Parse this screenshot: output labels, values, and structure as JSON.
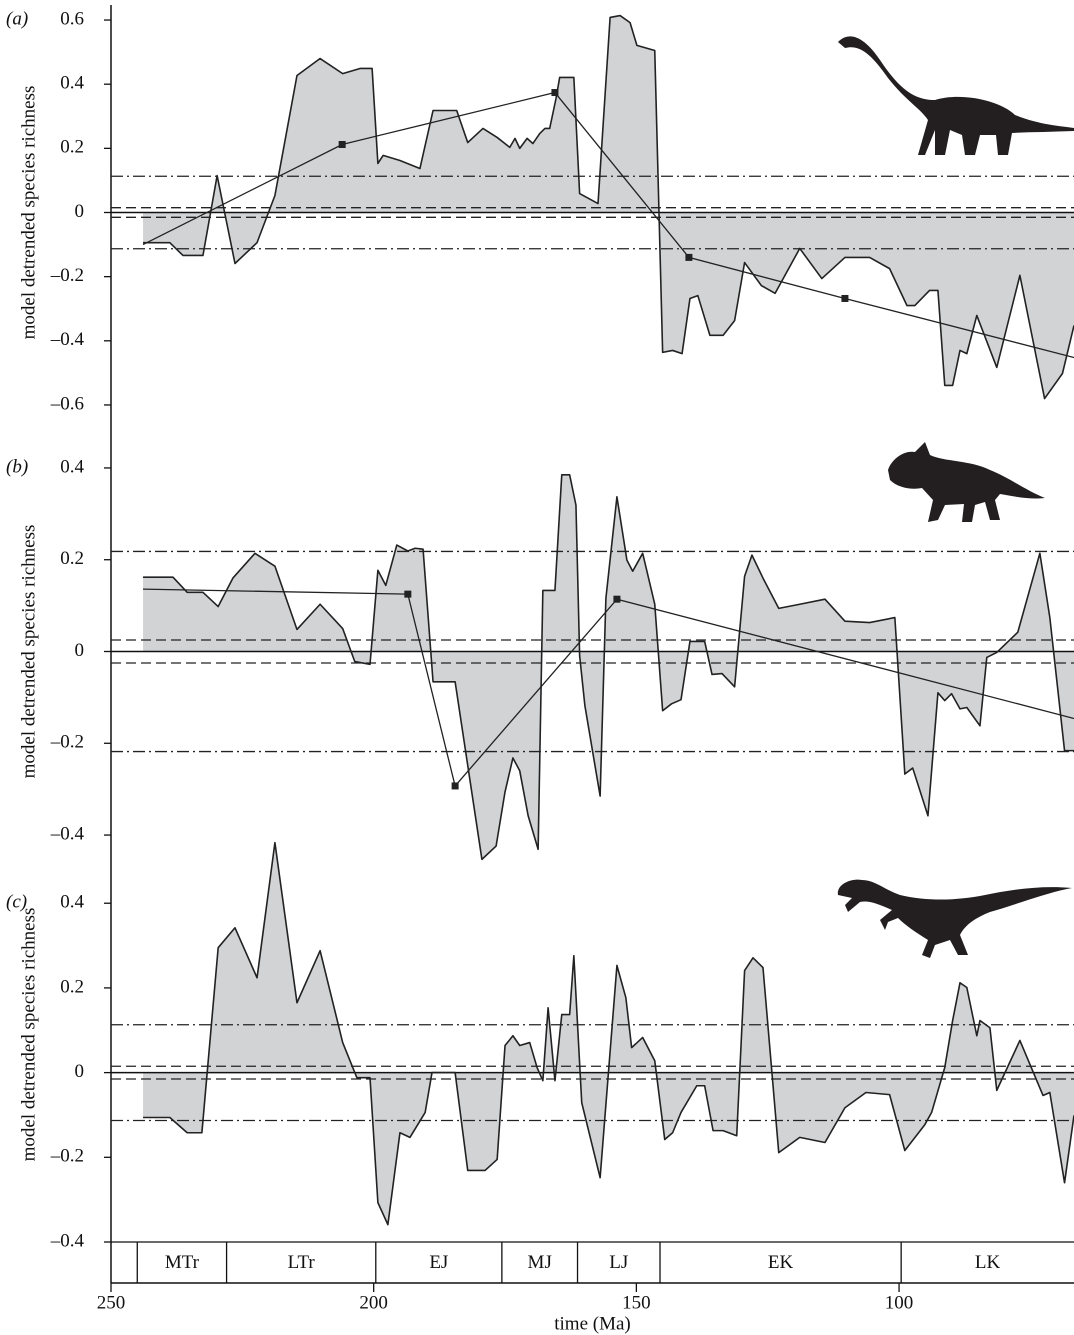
{
  "chart_data": [
    {
      "type": "area",
      "panel_label": "(a)",
      "ylabel": "model detrended species richness",
      "xlim": [
        250,
        66.7
      ],
      "ylim": [
        -0.65,
        0.65
      ],
      "yticks": [
        0.6,
        0.4,
        0.2,
        0,
        {
          "value": -0.2,
          "label": "–0.2"
        },
        {
          "value": -0.4,
          "label": "–0.4"
        },
        {
          "value": -0.6,
          "label": "–0.6"
        }
      ],
      "hlines": [
        {
          "value": 0.015,
          "style": "dashed"
        },
        {
          "value": -0.015,
          "style": "dashed"
        },
        {
          "value": 0.113,
          "style": "dashdot"
        },
        {
          "value": -0.113,
          "style": "dashdot"
        }
      ],
      "x": [
        243.9,
        238.8,
        236.3,
        232.5,
        229.8,
        226.4,
        222.2,
        218.8,
        214.6,
        210.2,
        205.9,
        202.6,
        200.3,
        199.2,
        198.2,
        195.0,
        191.2,
        188.7,
        184.2,
        182.1,
        179.2,
        176.5,
        174.1,
        173.1,
        172.2,
        170.8,
        169.7,
        168.4,
        167.4,
        166.5,
        165.3,
        164.6,
        161.9,
        160.8,
        157.3,
        155.0,
        153.1,
        151.2,
        149.9,
        146.5,
        145.0,
        143.1,
        141.3,
        139.8,
        138.3,
        136.0,
        133.5,
        131.3,
        129.4,
        126.2,
        123.6,
        118.9,
        114.7,
        110.3,
        105.6,
        101.8,
        98.5,
        97.0,
        94.2,
        92.6,
        91.3,
        89.8,
        88.4,
        87.1,
        85.2,
        81.4,
        77.0,
        72.3,
        68.9,
        66.7
      ],
      "values": [
        -0.094,
        -0.094,
        -0.134,
        -0.134,
        0.115,
        -0.159,
        -0.094,
        0.053,
        0.427,
        0.48,
        0.433,
        0.449,
        0.449,
        0.153,
        0.178,
        0.162,
        0.137,
        0.318,
        0.318,
        0.218,
        0.262,
        0.234,
        0.203,
        0.231,
        0.2,
        0.231,
        0.215,
        0.246,
        0.262,
        0.262,
        0.355,
        0.421,
        0.421,
        0.059,
        0.028,
        0.608,
        0.614,
        0.592,
        0.521,
        0.505,
        -0.436,
        -0.43,
        -0.44,
        -0.268,
        -0.259,
        -0.383,
        -0.383,
        -0.337,
        -0.156,
        -0.228,
        -0.252,
        -0.112,
        -0.206,
        -0.14,
        -0.14,
        -0.175,
        -0.29,
        -0.29,
        -0.243,
        -0.243,
        -0.539,
        -0.539,
        -0.43,
        -0.44,
        -0.321,
        -0.483,
        -0.196,
        -0.58,
        -0.502,
        -0.352
      ],
      "trend": {
        "x": [
          243.9,
          206.0,
          165.5,
          140.0,
          110.3,
          66.7
        ],
        "values": [
          -0.1,
          0.212,
          0.374,
          -0.14,
          -0.268,
          -0.452
        ]
      }
    },
    {
      "type": "area",
      "panel_label": "(b)",
      "ylabel": "model detrended species richness",
      "xlim": [
        250,
        66.7
      ],
      "ylim": [
        -0.45,
        0.45
      ],
      "yticks": [
        0.4,
        0.2,
        0,
        {
          "value": -0.2,
          "label": "–0.2"
        },
        {
          "value": -0.4,
          "label": "–0.4"
        }
      ],
      "hlines": [
        {
          "value": 0.025,
          "style": "dashed"
        },
        {
          "value": -0.025,
          "style": "dashed"
        },
        {
          "value": 0.218,
          "style": "dashdot"
        },
        {
          "value": -0.218,
          "style": "dashdot"
        }
      ],
      "x": [
        243.9,
        238.2,
        235.5,
        232.5,
        229.6,
        226.8,
        222.6,
        218.8,
        214.6,
        210.2,
        205.9,
        203.6,
        200.7,
        199.2,
        197.7,
        195.6,
        193.5,
        192.1,
        190.6,
        188.7,
        184.5,
        179.4,
        176.7,
        175.0,
        173.5,
        172.2,
        170.6,
        168.7,
        167.8,
        165.5,
        164.2,
        162.7,
        161.5,
        160.8,
        159.8,
        156.9,
        155.8,
        153.7,
        151.8,
        150.7,
        148.8,
        146.5,
        145.0,
        143.3,
        141.5,
        139.8,
        137.0,
        135.6,
        133.7,
        131.3,
        129.4,
        128.0,
        125.9,
        122.9,
        118.9,
        114.1,
        110.3,
        105.6,
        100.8,
        98.9,
        97.4,
        94.5,
        92.6,
        91.3,
        90.0,
        88.4,
        87.1,
        84.6,
        83.3,
        81.4,
        77.4,
        73.2,
        71.3,
        68.5,
        66.7
      ],
      "values": [
        0.162,
        0.162,
        0.129,
        0.129,
        0.098,
        0.16,
        0.214,
        0.186,
        0.048,
        0.103,
        0.05,
        -0.022,
        -0.028,
        0.177,
        0.144,
        0.232,
        0.219,
        0.225,
        0.223,
        -0.066,
        -0.066,
        -0.453,
        -0.424,
        -0.306,
        -0.232,
        -0.26,
        -0.358,
        -0.431,
        0.133,
        0.133,
        0.385,
        0.385,
        0.319,
        -0.009,
        -0.118,
        -0.315,
        0.116,
        0.337,
        0.199,
        0.175,
        0.214,
        0.103,
        -0.129,
        -0.114,
        -0.105,
        0.022,
        0.022,
        -0.05,
        -0.048,
        -0.077,
        0.164,
        0.21,
        0.16,
        0.094,
        0.103,
        0.114,
        0.066,
        0.063,
        0.074,
        -0.267,
        -0.254,
        -0.358,
        -0.09,
        -0.107,
        -0.092,
        -0.125,
        -0.122,
        -0.162,
        -0.013,
        -0.002,
        0.042,
        0.214,
        0.074,
        -0.216,
        -0.216
      ],
      "trend": {
        "x": [
          243.9,
          193.5,
          184.5,
          153.7,
          66.7
        ],
        "values": [
          0.136,
          0.125,
          -0.293,
          0.114,
          -0.146
        ]
      }
    },
    {
      "type": "area",
      "panel_label": "(c)",
      "ylabel": "model detrended species richness",
      "xlabel": "time (Ma)",
      "xlim": [
        250,
        66.7
      ],
      "ylim": [
        -0.4,
        0.58
      ],
      "xticks": [
        250,
        200,
        150,
        100
      ],
      "yticks": [
        0.4,
        0.2,
        0,
        {
          "value": -0.2,
          "label": "–0.2"
        },
        {
          "value": -0.4,
          "label": "–0.4"
        }
      ],
      "hlines": [
        {
          "value": 0.015,
          "style": "dashed"
        },
        {
          "value": -0.015,
          "style": "dashed"
        },
        {
          "value": 0.113,
          "style": "dashdot"
        },
        {
          "value": -0.113,
          "style": "dashdot"
        }
      ],
      "x": [
        243.9,
        238.8,
        235.5,
        232.7,
        229.6,
        226.4,
        222.2,
        218.8,
        214.6,
        210.2,
        205.9,
        203.2,
        200.7,
        199.2,
        197.3,
        195.0,
        193.1,
        190.2,
        188.9,
        184.5,
        182.1,
        178.8,
        176.5,
        175.0,
        173.5,
        172.2,
        170.3,
        168.9,
        167.8,
        166.8,
        165.5,
        164.2,
        162.7,
        161.9,
        160.4,
        156.9,
        153.7,
        152.0,
        150.9,
        148.8,
        146.5,
        144.6,
        143.1,
        141.5,
        138.5,
        137.0,
        135.4,
        133.5,
        130.9,
        129.4,
        127.8,
        125.9,
        122.9,
        118.9,
        114.1,
        110.3,
        106.3,
        101.8,
        98.9,
        95.1,
        93.8,
        91.3,
        89.8,
        88.4,
        87.1,
        85.2,
        84.6,
        82.7,
        81.4,
        77.0,
        72.6,
        71.3,
        68.5,
        66.7
      ],
      "values": [
        -0.106,
        -0.106,
        -0.142,
        -0.142,
        0.295,
        0.342,
        0.224,
        0.543,
        0.165,
        0.288,
        0.071,
        -0.012,
        -0.012,
        -0.307,
        -0.359,
        -0.142,
        -0.153,
        -0.094,
        0,
        0,
        -0.231,
        -0.231,
        -0.205,
        0.064,
        0.087,
        0.064,
        0.071,
        0.012,
        -0.019,
        0.153,
        -0.019,
        0.137,
        0.137,
        0.276,
        -0.071,
        -0.248,
        0.253,
        0.177,
        0.059,
        0.083,
        0.028,
        -0.158,
        -0.142,
        -0.094,
        -0.031,
        -0.031,
        -0.137,
        -0.137,
        -0.149,
        0.241,
        0.271,
        0.248,
        -0.189,
        -0.153,
        -0.165,
        -0.083,
        -0.047,
        -0.052,
        -0.184,
        -0.123,
        -0.094,
        0.012,
        0.123,
        0.212,
        0.201,
        0.087,
        0.123,
        0.106,
        -0.042,
        0.076,
        -0.054,
        -0.047,
        -0.26,
        -0.101
      ],
      "periods": [
        {
          "label": "MTr",
          "start": 245,
          "end": 228
        },
        {
          "label": "LTr",
          "start": 228,
          "end": 199.6
        },
        {
          "label": "EJ",
          "start": 199.6,
          "end": 175.6
        },
        {
          "label": "MJ",
          "start": 175.6,
          "end": 161.2
        },
        {
          "label": "LJ",
          "start": 161.2,
          "end": 145.5
        },
        {
          "label": "EK",
          "start": 145.5,
          "end": 99.6
        },
        {
          "label": "LK",
          "start": 99.6,
          "end": 66
        }
      ]
    }
  ]
}
